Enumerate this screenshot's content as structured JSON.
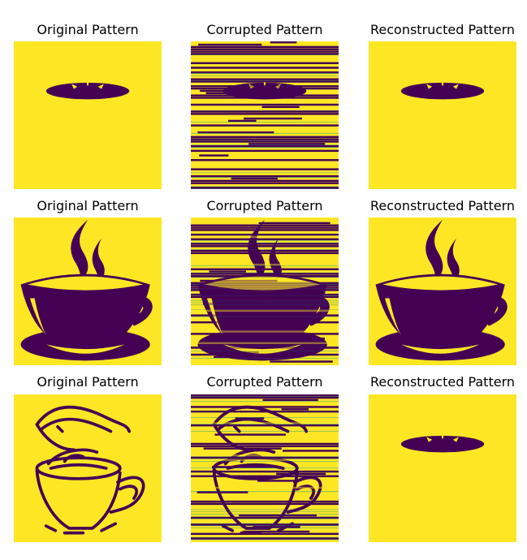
{
  "chart_data": {
    "type": "heatmap",
    "colors": {
      "on": "#FDE725",
      "off": "#440154",
      "mid": "#21918C"
    },
    "rows": [
      {
        "panels": [
          {
            "title": "Original Pattern",
            "image": "hat-ellipse"
          },
          {
            "title": "Corrupted Pattern",
            "image": "hat-ellipse-corrupted"
          },
          {
            "title": "Reconstructed Pattern",
            "image": "hat-ellipse"
          }
        ]
      },
      {
        "panels": [
          {
            "title": "Original Pattern",
            "image": "coffee-cup-solid"
          },
          {
            "title": "Corrupted Pattern",
            "image": "coffee-cup-solid-corrupted"
          },
          {
            "title": "Reconstructed Pattern",
            "image": "coffee-cup-solid"
          }
        ]
      },
      {
        "panels": [
          {
            "title": "Original Pattern",
            "image": "coffee-cup-outline"
          },
          {
            "title": "Corrupted Pattern",
            "image": "coffee-cup-outline-corrupted"
          },
          {
            "title": "Reconstructed Pattern",
            "image": "hat-ellipse"
          }
        ]
      }
    ]
  }
}
